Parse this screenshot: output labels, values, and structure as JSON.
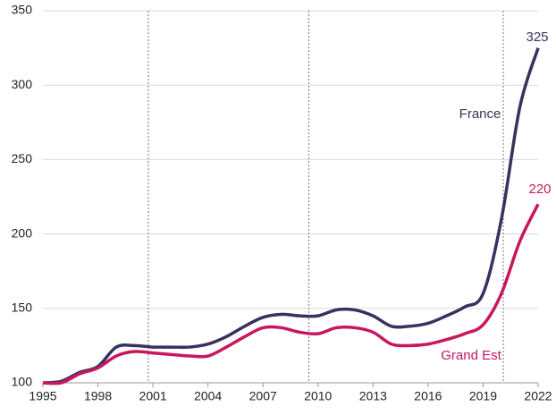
{
  "chart_data": {
    "type": "line",
    "x": [
      1995,
      1996,
      1997,
      1998,
      1999,
      2000,
      2001,
      2002,
      2003,
      2004,
      2005,
      2006,
      2007,
      2008,
      2009,
      2010,
      2011,
      2012,
      2013,
      2014,
      2015,
      2016,
      2017,
      2018,
      2019,
      2020,
      2021,
      2022
    ],
    "series": [
      {
        "name": "France",
        "color": "#37325f",
        "values": [
          100,
          101,
          107,
          111,
          124,
          125,
          124,
          124,
          124,
          126,
          131,
          138,
          144,
          146,
          145,
          145,
          149,
          149,
          145,
          138,
          138,
          140,
          145,
          151,
          160,
          210,
          285,
          325
        ]
      },
      {
        "name": "Grand Est",
        "color": "#c8175f",
        "values": [
          100,
          100,
          106,
          110,
          118,
          121,
          120,
          119,
          118,
          118,
          124,
          131,
          137,
          137,
          134,
          133,
          137,
          137,
          134,
          126,
          125,
          126,
          129,
          133,
          139,
          160,
          195,
          220
        ]
      }
    ],
    "xlim": [
      1995,
      2022
    ],
    "xticks": [
      1995,
      1998,
      2001,
      2004,
      2007,
      2010,
      2013,
      2016,
      2019,
      2022
    ],
    "ylim": [
      100,
      350
    ],
    "yticks": [
      100,
      150,
      200,
      250,
      300,
      350
    ],
    "vlines": [
      2000.75,
      2009.5,
      2020.1
    ],
    "grid": true
  }
}
